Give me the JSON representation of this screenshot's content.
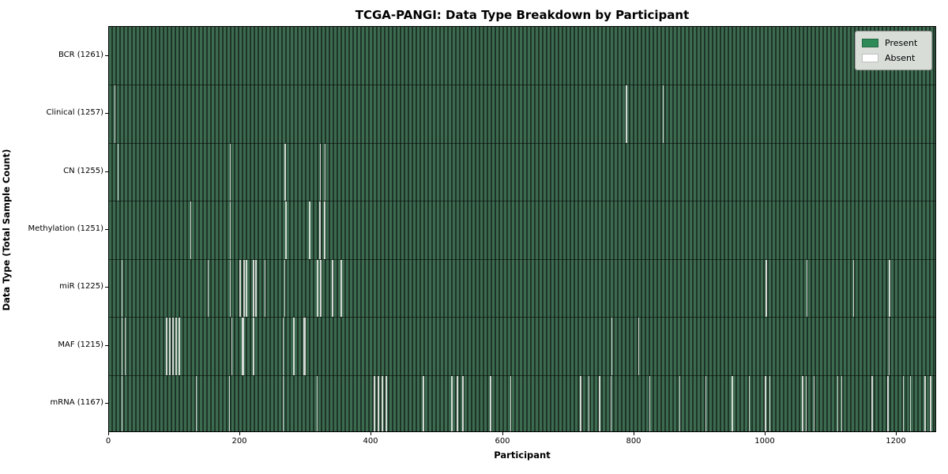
{
  "title": "TCGA-PANGI: Data Type Breakdown by Participant",
  "xlabel": "Participant",
  "ylabel": "Data Type (Total Sample Count)",
  "legend": {
    "present_label": "Present",
    "absent_label": "Absent"
  },
  "colors": {
    "present": "#2e8b57",
    "absent": "#ffffff",
    "stripe_light": "#3c6b50",
    "stripe_dark": "#1f3428",
    "gap_line": "#d3d8d3",
    "legend_bg": "#d8ddd8"
  },
  "x_ticks": [
    0,
    200,
    400,
    600,
    800,
    1000,
    1200
  ],
  "chart_data": {
    "type": "heatmap",
    "title": "TCGA-PANGI: Data Type Breakdown by Participant",
    "xlabel": "Participant",
    "ylabel": "Data Type (Total Sample Count)",
    "x_range": [
      0,
      1261
    ],
    "legend_position": "upper right",
    "value_legend": {
      "present": "#2e8b57",
      "absent": "#ffffff"
    },
    "rows": [
      {
        "label": "BCR (1261)",
        "data_type": "BCR",
        "total": 1261,
        "absent_segments": []
      },
      {
        "label": "Clinical (1257)",
        "data_type": "Clinical",
        "total": 1257,
        "absent_segments": [
          {
            "p": 8,
            "w": 1
          },
          {
            "p": 788,
            "w": 2
          },
          {
            "p": 845,
            "w": 1
          }
        ]
      },
      {
        "label": "CN (1255)",
        "data_type": "CN",
        "total": 1255,
        "absent_segments": [
          {
            "p": 13,
            "w": 1
          },
          {
            "p": 185,
            "w": 1
          },
          {
            "p": 268,
            "w": 2
          },
          {
            "p": 322,
            "w": 1
          },
          {
            "p": 329,
            "w": 1
          }
        ]
      },
      {
        "label": "Methylation (1251)",
        "data_type": "Methylation",
        "total": 1251,
        "absent_segments": [
          {
            "p": 124,
            "w": 1
          },
          {
            "p": 185,
            "w": 1
          },
          {
            "p": 269,
            "w": 2
          },
          {
            "p": 305,
            "w": 2
          },
          {
            "p": 321,
            "w": 2
          },
          {
            "p": 328,
            "w": 2
          }
        ]
      },
      {
        "label": "miR (1225)",
        "data_type": "miR",
        "total": 1225,
        "absent_segments": [
          {
            "p": 19,
            "w": 1
          },
          {
            "p": 151,
            "w": 1
          },
          {
            "p": 185,
            "w": 1
          },
          {
            "p": 199,
            "w": 2
          },
          {
            "p": 205,
            "w": 2
          },
          {
            "p": 209,
            "w": 2
          },
          {
            "p": 219,
            "w": 2
          },
          {
            "p": 223,
            "w": 2
          },
          {
            "p": 237,
            "w": 1
          },
          {
            "p": 268,
            "w": 1
          },
          {
            "p": 317,
            "w": 2
          },
          {
            "p": 322,
            "w": 2
          },
          {
            "p": 340,
            "w": 3
          },
          {
            "p": 353,
            "w": 2
          },
          {
            "p": 1002,
            "w": 2
          },
          {
            "p": 1064,
            "w": 1
          },
          {
            "p": 1136,
            "w": 1
          },
          {
            "p": 1190,
            "w": 3
          }
        ]
      },
      {
        "label": "MAF (1215)",
        "data_type": "MAF",
        "total": 1215,
        "absent_segments": [
          {
            "p": 19,
            "w": 1
          },
          {
            "p": 24,
            "w": 1
          },
          {
            "p": 87,
            "w": 2
          },
          {
            "p": 92,
            "w": 2
          },
          {
            "p": 96,
            "w": 2
          },
          {
            "p": 101,
            "w": 2
          },
          {
            "p": 106,
            "w": 3
          },
          {
            "p": 187,
            "w": 1
          },
          {
            "p": 202,
            "w": 4
          },
          {
            "p": 219,
            "w": 2
          },
          {
            "p": 265,
            "w": 1
          },
          {
            "p": 281,
            "w": 3
          },
          {
            "p": 297,
            "w": 4
          },
          {
            "p": 767,
            "w": 1
          },
          {
            "p": 808,
            "w": 1
          },
          {
            "p": 1190,
            "w": 1
          }
        ]
      },
      {
        "label": "mRNA (1167)",
        "data_type": "mRNA",
        "total": 1167,
        "absent_segments": [
          {
            "p": 19,
            "w": 1
          },
          {
            "p": 133,
            "w": 1
          },
          {
            "p": 183,
            "w": 1
          },
          {
            "p": 265,
            "w": 1
          },
          {
            "p": 317,
            "w": 1
          },
          {
            "p": 404,
            "w": 2
          },
          {
            "p": 410,
            "w": 2
          },
          {
            "p": 416,
            "w": 2
          },
          {
            "p": 422,
            "w": 2
          },
          {
            "p": 478,
            "w": 2
          },
          {
            "p": 522,
            "w": 2
          },
          {
            "p": 530,
            "w": 2
          },
          {
            "p": 539,
            "w": 3
          },
          {
            "p": 581,
            "w": 2
          },
          {
            "p": 613,
            "w": 1
          },
          {
            "p": 719,
            "w": 2
          },
          {
            "p": 732,
            "w": 1
          },
          {
            "p": 747,
            "w": 2
          },
          {
            "p": 765,
            "w": 1
          },
          {
            "p": 825,
            "w": 1
          },
          {
            "p": 870,
            "w": 1
          },
          {
            "p": 910,
            "w": 1
          },
          {
            "p": 950,
            "w": 2
          },
          {
            "p": 976,
            "w": 1
          },
          {
            "p": 1000,
            "w": 2
          },
          {
            "p": 1008,
            "w": 1
          },
          {
            "p": 1057,
            "w": 2
          },
          {
            "p": 1063,
            "w": 1
          },
          {
            "p": 1075,
            "w": 1
          },
          {
            "p": 1111,
            "w": 1
          },
          {
            "p": 1118,
            "w": 1
          },
          {
            "p": 1163,
            "w": 2
          },
          {
            "p": 1187,
            "w": 2
          },
          {
            "p": 1211,
            "w": 1
          },
          {
            "p": 1223,
            "w": 1
          },
          {
            "p": 1244,
            "w": 2
          },
          {
            "p": 1253,
            "w": 2
          }
        ]
      }
    ]
  }
}
